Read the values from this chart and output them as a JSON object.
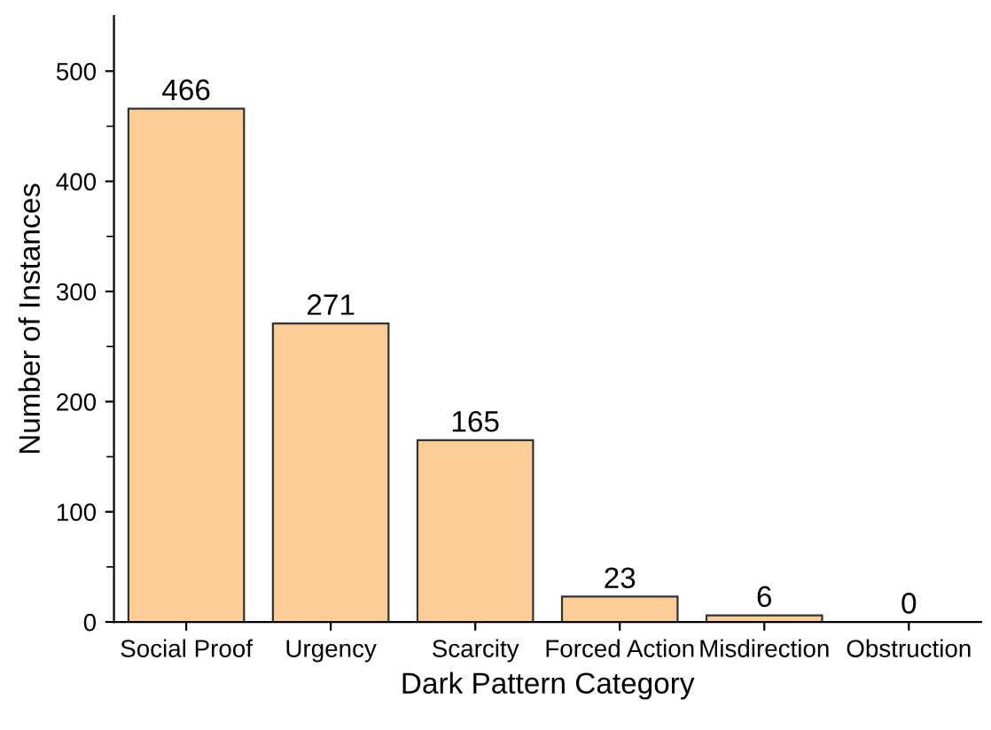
{
  "chart_data": {
    "type": "bar",
    "xlabel": "Dark Pattern Category",
    "ylabel": "Number of Instances",
    "categories": [
      "Social Proof",
      "Urgency",
      "Scarcity",
      "Forced Action",
      "Misdirection",
      "Obstruction"
    ],
    "values": [
      466,
      271,
      165,
      23,
      6,
      0
    ],
    "color": "#fdcd96",
    "ylim": [
      0,
      550
    ],
    "yticks": [
      0,
      100,
      200,
      300,
      400,
      500
    ],
    "data_labels": true,
    "grid": false,
    "legend": false
  }
}
